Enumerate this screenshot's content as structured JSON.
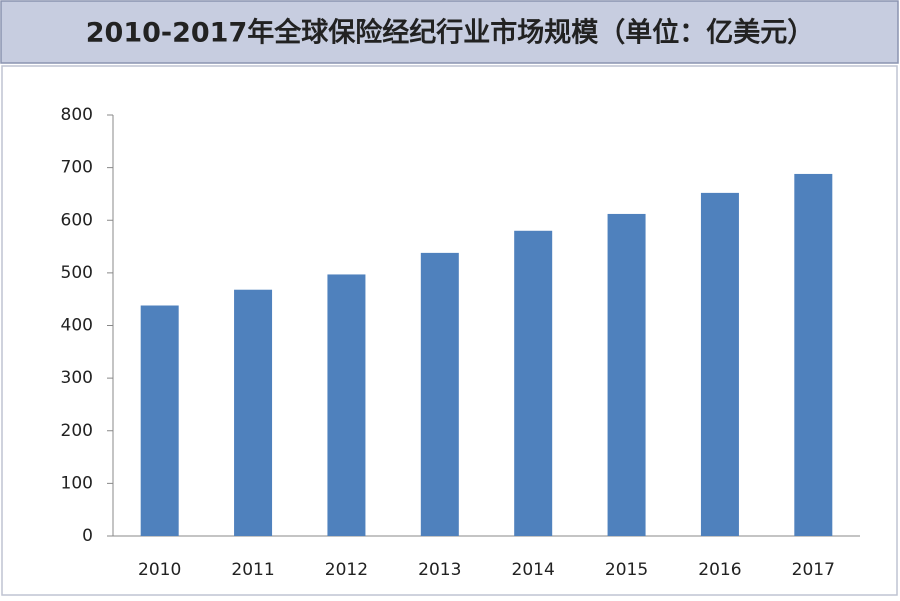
{
  "chart_data": {
    "type": "bar",
    "title": "2010-2017年全球保险经纪行业市场规模（单位：亿美元）",
    "categories": [
      "2010",
      "2011",
      "2012",
      "2013",
      "2014",
      "2015",
      "2016",
      "2017"
    ],
    "values": [
      438,
      468,
      497,
      538,
      580,
      612,
      652,
      688
    ],
    "color": "#4f81bd",
    "ylim": [
      0,
      800
    ],
    "yticks": [
      0,
      100,
      200,
      300,
      400,
      500,
      600,
      700,
      800
    ],
    "grid": false
  }
}
